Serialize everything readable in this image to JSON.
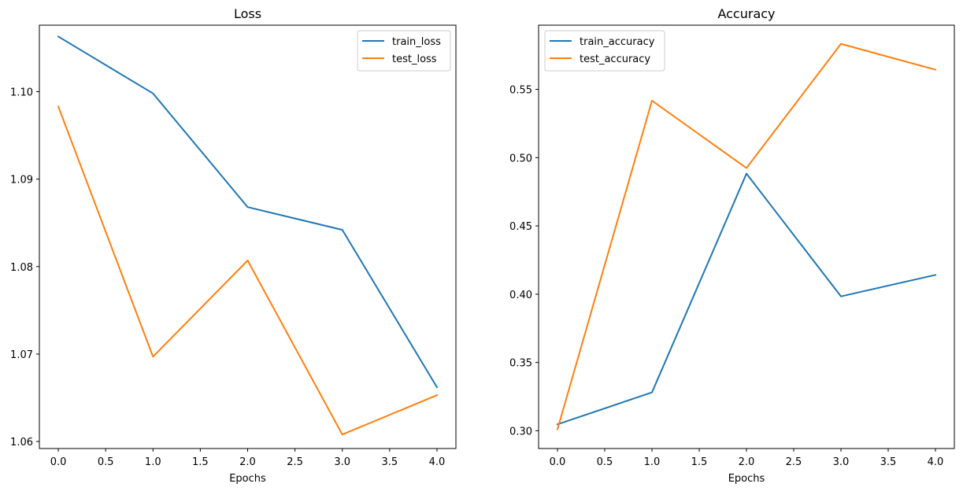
{
  "chart_data": [
    {
      "type": "line",
      "title": "Loss",
      "xlabel": "Epochs",
      "ylabel": "",
      "x": [
        0,
        1,
        2,
        3,
        4
      ],
      "xlim": [
        -0.2,
        4.2
      ],
      "ylim": [
        1.0592,
        1.1076
      ],
      "xticks": [
        0,
        0.5,
        1,
        1.5,
        2,
        2.5,
        3,
        3.5,
        4
      ],
      "xtick_labels": [
        "0.0",
        "0.5",
        "1.0",
        "1.5",
        "2.0",
        "2.5",
        "3.0",
        "3.5",
        "4.0"
      ],
      "yticks": [
        1.06,
        1.07,
        1.08,
        1.09,
        1.1
      ],
      "ytick_labels": [
        "1.06",
        "1.07",
        "1.08",
        "1.09",
        "1.10"
      ],
      "legend_position": "top-right",
      "grid": false,
      "series": [
        {
          "name": "train_loss",
          "color": "#1f77b4",
          "values": [
            1.1063,
            1.0998,
            1.0868,
            1.0842,
            1.0662
          ]
        },
        {
          "name": "test_loss",
          "color": "#ff7f0e",
          "values": [
            1.0983,
            1.0697,
            1.0807,
            1.0608,
            1.0653
          ]
        }
      ]
    },
    {
      "type": "line",
      "title": "Accuracy",
      "xlabel": "Epochs",
      "ylabel": "",
      "x": [
        0,
        1,
        2,
        3,
        4
      ],
      "xlim": [
        -0.2,
        4.2
      ],
      "ylim": [
        0.287,
        0.597
      ],
      "xticks": [
        0,
        0.5,
        1,
        1.5,
        2,
        2.5,
        3,
        3.5,
        4
      ],
      "xtick_labels": [
        "0.0",
        "0.5",
        "1.0",
        "1.5",
        "2.0",
        "2.5",
        "3.0",
        "3.5",
        "4.0"
      ],
      "yticks": [
        0.3,
        0.35,
        0.4,
        0.45,
        0.5,
        0.55
      ],
      "ytick_labels": [
        "0.30",
        "0.35",
        "0.40",
        "0.45",
        "0.50",
        "0.55"
      ],
      "legend_position": "top-left",
      "grid": false,
      "series": [
        {
          "name": "train_accuracy",
          "color": "#1f77b4",
          "values": [
            0.3047,
            0.3281,
            0.4883,
            0.3984,
            0.4141
          ]
        },
        {
          "name": "test_accuracy",
          "color": "#ff7f0e",
          "values": [
            0.3011,
            0.5417,
            0.4924,
            0.5833,
            0.5644
          ]
        }
      ]
    }
  ]
}
